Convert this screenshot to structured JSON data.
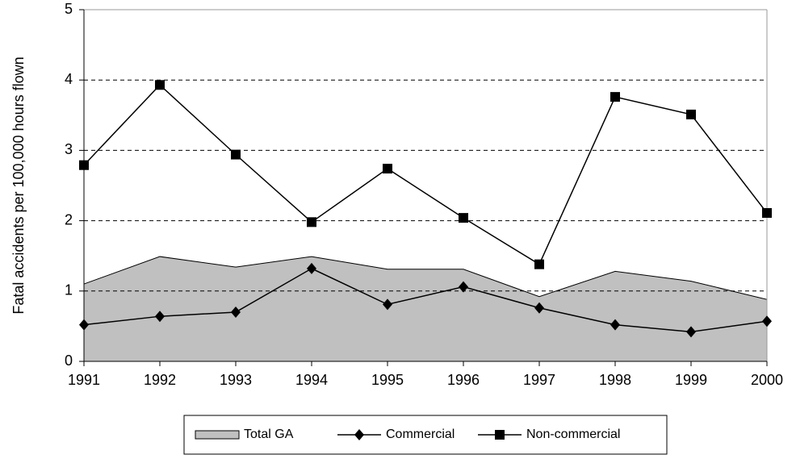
{
  "chart_data": {
    "type": "area-line",
    "y_label": "Fatal accidents per 100,000 hours flown",
    "categories": [
      "1991",
      "1992",
      "1993",
      "1994",
      "1995",
      "1996",
      "1997",
      "1998",
      "1999",
      "2000"
    ],
    "series": [
      {
        "name": "Total GA",
        "type": "area",
        "color": "#c0c0c0",
        "values": [
          1.1,
          1.49,
          1.34,
          1.49,
          1.31,
          1.31,
          0.92,
          1.28,
          1.14,
          0.88
        ]
      },
      {
        "name": "Commercial",
        "type": "line",
        "marker": "diamond",
        "color": "#000000",
        "values": [
          0.52,
          0.64,
          0.7,
          1.32,
          0.81,
          1.06,
          0.76,
          0.52,
          0.42,
          0.57
        ]
      },
      {
        "name": "Non-commercial",
        "type": "line",
        "marker": "square",
        "color": "#000000",
        "values": [
          2.79,
          3.93,
          2.94,
          1.98,
          2.74,
          2.04,
          1.38,
          3.76,
          3.51,
          2.11
        ]
      }
    ],
    "ylim": [
      0,
      5
    ],
    "yticks": [
      0,
      1,
      2,
      3,
      4,
      5
    ],
    "grid": true
  }
}
